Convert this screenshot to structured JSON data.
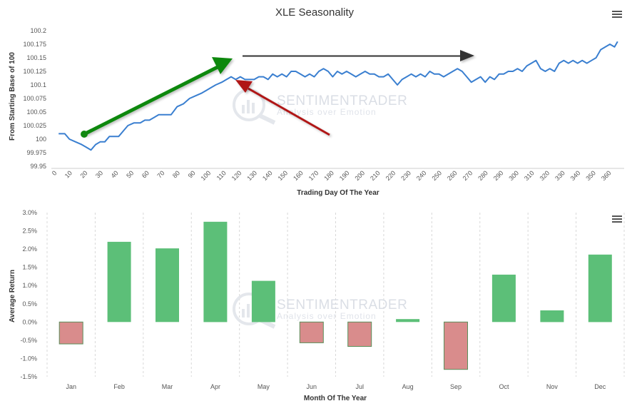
{
  "watermark": {
    "brand": "SENTIMENTRADER",
    "tagline": "Analysis over Emotion"
  },
  "chart_data": [
    {
      "type": "line",
      "title": "XLE Seasonality",
      "xlabel": "Trading Day Of The Year",
      "ylabel": "From Starting Base of 100",
      "xlim": [
        0,
        365
      ],
      "ylim": [
        99.95,
        100.2
      ],
      "x_ticks": [
        "0",
        "10",
        "20",
        "30",
        "40",
        "50",
        "60",
        "70",
        "80",
        "90",
        "100",
        "110",
        "120",
        "130",
        "140",
        "150",
        "160",
        "170",
        "180",
        "190",
        "200",
        "210",
        "220",
        "230",
        "240",
        "250",
        "260",
        "270",
        "280",
        "290",
        "300",
        "310",
        "320",
        "330",
        "340",
        "350",
        "360"
      ],
      "y_ticks": [
        "100.2",
        "100.175",
        "100.15",
        "100.125",
        "100.1",
        "100.075",
        "100.05",
        "100.025",
        "100",
        "99.975",
        "99.95"
      ],
      "grid": false,
      "series": [
        {
          "color": "#3a7fd0",
          "points": [
            [
              1,
              100.01
            ],
            [
              5,
              100.01
            ],
            [
              8,
              100.0
            ],
            [
              12,
              99.995
            ],
            [
              16,
              99.99
            ],
            [
              19,
              99.985
            ],
            [
              22,
              99.98
            ],
            [
              25,
              99.99
            ],
            [
              28,
              99.995
            ],
            [
              31,
              99.995
            ],
            [
              34,
              100.005
            ],
            [
              37,
              100.005
            ],
            [
              40,
              100.005
            ],
            [
              43,
              100.015
            ],
            [
              46,
              100.025
            ],
            [
              50,
              100.03
            ],
            [
              54,
              100.03
            ],
            [
              57,
              100.035
            ],
            [
              60,
              100.035
            ],
            [
              63,
              100.04
            ],
            [
              66,
              100.045
            ],
            [
              70,
              100.045
            ],
            [
              74,
              100.045
            ],
            [
              78,
              100.06
            ],
            [
              82,
              100.065
            ],
            [
              86,
              100.075
            ],
            [
              90,
              100.08
            ],
            [
              94,
              100.085
            ],
            [
              97,
              100.09
            ],
            [
              100,
              100.095
            ],
            [
              103,
              100.1
            ],
            [
              107,
              100.105
            ],
            [
              110,
              100.11
            ],
            [
              113,
              100.115
            ],
            [
              116,
              100.11
            ],
            [
              119,
              100.115
            ],
            [
              122,
              100.11
            ],
            [
              125,
              100.11
            ],
            [
              128,
              100.11
            ],
            [
              131,
              100.115
            ],
            [
              134,
              100.115
            ],
            [
              137,
              100.11
            ],
            [
              140,
              100.12
            ],
            [
              143,
              100.115
            ],
            [
              146,
              100.12
            ],
            [
              149,
              100.115
            ],
            [
              152,
              100.125
            ],
            [
              155,
              100.125
            ],
            [
              158,
              100.12
            ],
            [
              161,
              100.115
            ],
            [
              164,
              100.12
            ],
            [
              167,
              100.115
            ],
            [
              170,
              100.125
            ],
            [
              173,
              100.13
            ],
            [
              176,
              100.125
            ],
            [
              179,
              100.115
            ],
            [
              182,
              100.125
            ],
            [
              185,
              100.12
            ],
            [
              188,
              100.125
            ],
            [
              191,
              100.12
            ],
            [
              194,
              100.115
            ],
            [
              197,
              100.12
            ],
            [
              200,
              100.125
            ],
            [
              203,
              100.12
            ],
            [
              206,
              100.12
            ],
            [
              209,
              100.115
            ],
            [
              212,
              100.115
            ],
            [
              215,
              100.12
            ],
            [
              218,
              100.11
            ],
            [
              221,
              100.1
            ],
            [
              224,
              100.11
            ],
            [
              227,
              100.115
            ],
            [
              230,
              100.12
            ],
            [
              233,
              100.115
            ],
            [
              236,
              100.12
            ],
            [
              239,
              100.115
            ],
            [
              242,
              100.125
            ],
            [
              245,
              100.12
            ],
            [
              248,
              100.12
            ],
            [
              251,
              100.115
            ],
            [
              254,
              100.12
            ],
            [
              257,
              100.125
            ],
            [
              260,
              100.13
            ],
            [
              263,
              100.125
            ],
            [
              266,
              100.115
            ],
            [
              269,
              100.105
            ],
            [
              272,
              100.11
            ],
            [
              275,
              100.115
            ],
            [
              278,
              100.105
            ],
            [
              281,
              100.115
            ],
            [
              284,
              100.11
            ],
            [
              287,
              100.12
            ],
            [
              290,
              100.12
            ],
            [
              293,
              100.125
            ],
            [
              296,
              100.125
            ],
            [
              299,
              100.13
            ],
            [
              302,
              100.125
            ],
            [
              305,
              100.135
            ],
            [
              308,
              100.14
            ],
            [
              311,
              100.145
            ],
            [
              314,
              100.13
            ],
            [
              317,
              100.125
            ],
            [
              320,
              100.13
            ],
            [
              323,
              100.125
            ],
            [
              326,
              100.14
            ],
            [
              329,
              100.145
            ],
            [
              332,
              100.14
            ],
            [
              335,
              100.145
            ],
            [
              338,
              100.14
            ],
            [
              341,
              100.145
            ],
            [
              344,
              100.14
            ],
            [
              347,
              100.145
            ],
            [
              350,
              100.15
            ],
            [
              353,
              100.165
            ],
            [
              356,
              100.17
            ],
            [
              359,
              100.175
            ],
            [
              362,
              100.17
            ],
            [
              364,
              100.18
            ]
          ]
        }
      ]
    },
    {
      "type": "bar",
      "title": "",
      "xlabel": "Month Of The Year",
      "ylabel": "Average Return",
      "categories": [
        "Jan",
        "Feb",
        "Mar",
        "Apr",
        "May",
        "Jun",
        "Jul",
        "Aug",
        "Sep",
        "Oct",
        "Nov",
        "Dec"
      ],
      "values": [
        -0.6,
        2.2,
        2.02,
        2.75,
        1.13,
        -0.57,
        -0.67,
        0.08,
        -1.3,
        1.3,
        0.32,
        1.85
      ],
      "ylim": [
        -1.5,
        3.0
      ],
      "y_ticks": [
        "3.0%",
        "2.5%",
        "2.0%",
        "1.5%",
        "1.0%",
        "0.5%",
        "0.0%",
        "-0.5%",
        "-1.0%",
        "-1.5%"
      ],
      "positive_color": "#5cbf78",
      "negative_color": "#d98c8c",
      "grid": "vertical-dashed"
    }
  ],
  "annotations": {
    "up_arrow_color": "#118811",
    "right_arrow_color": "#333333",
    "pointer_arrow_color": "#b01818",
    "marker_line_color": "#c81e1e"
  },
  "menu_icon": "hamburger-menu-icon"
}
